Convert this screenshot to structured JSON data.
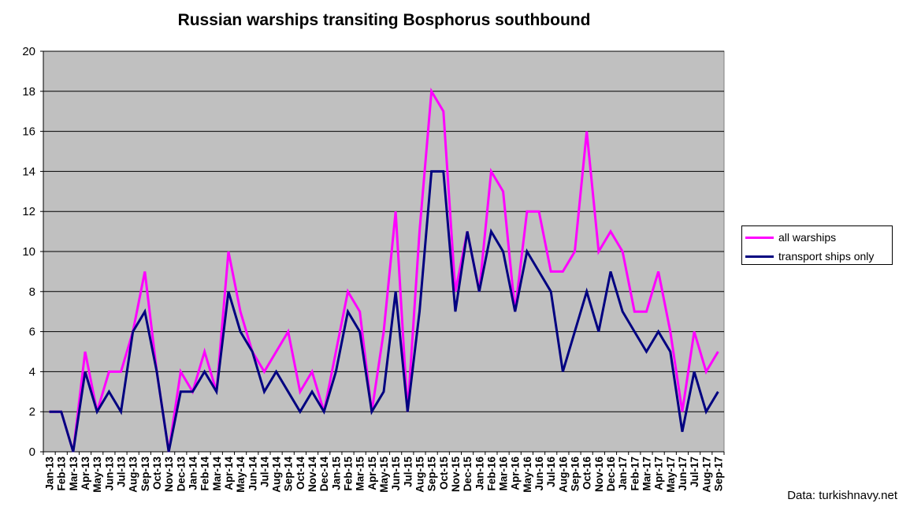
{
  "chart_data": {
    "type": "line",
    "title": "Russian warships transiting Bosphorus southbound",
    "xlabel": "",
    "ylabel": "",
    "ylim": [
      0,
      20
    ],
    "yticks": [
      0,
      2,
      4,
      6,
      8,
      10,
      12,
      14,
      16,
      18,
      20
    ],
    "grid": true,
    "legend_position": "right",
    "background": "#c0c0c0",
    "categories": [
      "Jan-13",
      "Feb-13",
      "Mar-13",
      "Apr-13",
      "May-13",
      "Jun-13",
      "Jul-13",
      "Aug-13",
      "Sep-13",
      "Oct-13",
      "Nov-13",
      "Dec-13",
      "Jan-14",
      "Feb-14",
      "Mar-14",
      "Apr-14",
      "May-14",
      "Jun-14",
      "Jul-14",
      "Aug-14",
      "Sep-14",
      "Oct-14",
      "Nov-14",
      "Dec-14",
      "Jan-15",
      "Feb-15",
      "Mar-15",
      "Apr-15",
      "May-15",
      "Jun-15",
      "Jul-15",
      "Aug-15",
      "Sep-15",
      "Oct-15",
      "Nov-15",
      "Dec-15",
      "Jan-16",
      "Feb-16",
      "Mar-16",
      "Apr-16",
      "May-16",
      "Jun-16",
      "Jul-16",
      "Aug-16",
      "Sep-16",
      "Oct-16",
      "Nov-16",
      "Dec-16",
      "Jan-17",
      "Feb-17",
      "Mar-17",
      "Apr-17",
      "May-17",
      "Jun-17",
      "Jul-17",
      "Aug-17",
      "Sep-17"
    ],
    "series": [
      {
        "name": "all warships",
        "color": "#ff00ff",
        "values": [
          2,
          2,
          0,
          5,
          2,
          4,
          4,
          6,
          9,
          4,
          0,
          4,
          3,
          5,
          3,
          10,
          7,
          5,
          4,
          5,
          6,
          3,
          4,
          2,
          5,
          8,
          7,
          2,
          6,
          12,
          2,
          11,
          18,
          17,
          8,
          11,
          8,
          14,
          13,
          7,
          12,
          12,
          9,
          9,
          10,
          16,
          10,
          11,
          10,
          7,
          7,
          9,
          6,
          2,
          6,
          4,
          5
        ]
      },
      {
        "name": "transport ships only",
        "color": "#000080",
        "values": [
          2,
          2,
          0,
          4,
          2,
          3,
          2,
          6,
          7,
          4,
          0,
          3,
          3,
          4,
          3,
          8,
          6,
          5,
          3,
          4,
          3,
          2,
          3,
          2,
          4,
          7,
          6,
          2,
          3,
          8,
          2,
          7,
          14,
          14,
          7,
          11,
          8,
          11,
          10,
          7,
          10,
          9,
          8,
          4,
          6,
          8,
          6,
          9,
          7,
          6,
          5,
          6,
          5,
          1,
          4,
          2,
          3
        ]
      }
    ]
  },
  "source_note": "Data: turkishnavy.net"
}
